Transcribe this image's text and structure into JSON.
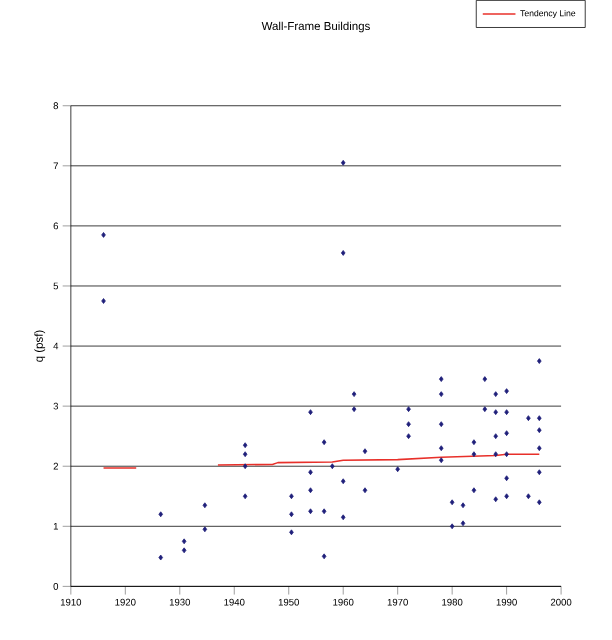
{
  "chart_data": {
    "type": "scatter",
    "title": "Wall-Frame Buildings",
    "ylabel": "q (psf)",
    "xlim": [
      1910,
      2000
    ],
    "xticks": [
      1910,
      1920,
      1930,
      1940,
      1950,
      1960,
      1970,
      1980,
      1990,
      2000
    ],
    "ylim": [
      0,
      8
    ],
    "yticks": [
      0,
      1,
      2,
      3,
      4,
      5,
      6,
      7,
      8
    ],
    "grid": "y",
    "legend": "top right",
    "series": [
      {
        "marker": "diamond",
        "color": "#1f1f7a",
        "x": [
          1916,
          1916,
          1926.5,
          1926.5,
          1930.8,
          1930.8,
          1934.6,
          1934.6,
          1942,
          1942,
          1942,
          1942,
          1950.5,
          1950.5,
          1950.5,
          1954,
          1954,
          1954,
          1954,
          1956.5,
          1956.5,
          1956.5,
          1958,
          1960,
          1960,
          1960,
          1960,
          1962,
          1962,
          1964,
          1964,
          1970,
          1972,
          1972,
          1972,
          1978,
          1978,
          1978,
          1978,
          1978,
          1980,
          1980,
          1982,
          1982,
          1984,
          1984,
          1984,
          1986,
          1986,
          1988,
          1988,
          1988,
          1988,
          1988,
          1990,
          1990,
          1990,
          1990,
          1990,
          1990,
          1994,
          1994,
          1996,
          1996,
          1996,
          1996,
          1996,
          1996
        ],
        "values": [
          5.85,
          4.75,
          1.2,
          0.48,
          0.6,
          0.75,
          1.35,
          0.95,
          1.5,
          2.0,
          2.2,
          2.35,
          0.9,
          1.2,
          1.5,
          1.25,
          1.6,
          1.9,
          2.9,
          0.5,
          1.25,
          2.4,
          2.0,
          7.05,
          5.55,
          1.15,
          1.75,
          3.2,
          2.95,
          1.6,
          2.25,
          1.95,
          2.95,
          2.7,
          2.5,
          3.45,
          3.2,
          2.7,
          2.3,
          2.1,
          1.0,
          1.4,
          1.05,
          1.35,
          2.4,
          2.2,
          1.6,
          3.45,
          2.95,
          3.2,
          2.9,
          2.5,
          2.2,
          1.45,
          3.25,
          2.9,
          2.55,
          2.2,
          1.8,
          1.5,
          2.8,
          1.5,
          3.75,
          2.8,
          2.6,
          2.3,
          1.9,
          1.4
        ]
      },
      {
        "type": "line",
        "name": "Tendency Line",
        "color": "#e8302a",
        "line_style": "solid",
        "x": [
          1916,
          1922,
          1930,
          1937,
          1947,
          1948,
          1958,
          1960,
          1970,
          1978,
          1988,
          1990,
          1996
        ],
        "values": [
          1.97,
          1.97,
          null,
          2.02,
          2.03,
          2.06,
          2.07,
          2.1,
          2.11,
          2.15,
          2.18,
          2.2,
          2.2
        ]
      }
    ]
  }
}
